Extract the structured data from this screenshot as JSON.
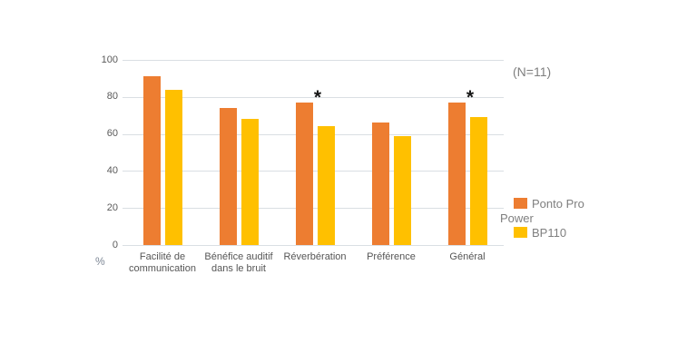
{
  "figure": {
    "background": "#ffffff",
    "annotation": "(N=11)",
    "unit_label": "%"
  },
  "legend": {
    "position": "right",
    "items": [
      {
        "label": "Ponto Pro Power",
        "color": "#ED7D31"
      },
      {
        "label": "BP110",
        "color": "#FFC000"
      }
    ]
  },
  "chart_data": {
    "type": "bar",
    "title": "",
    "categories": [
      "Facilité de communication",
      "Bénéfice auditif dans le bruit",
      "Réverbération",
      "Préférence",
      "Général"
    ],
    "series": [
      {
        "name": "Ponto Pro Power",
        "color": "#ED7D31",
        "values": [
          91,
          74,
          77,
          66,
          77
        ]
      },
      {
        "name": "BP110",
        "color": "#FFC000",
        "values": [
          84,
          68,
          64,
          59,
          69
        ]
      }
    ],
    "significance": {
      "symbol": "*",
      "marked_categories": [
        "Réverbération",
        "Général"
      ],
      "marked_indices": [
        2,
        4
      ]
    },
    "ylabel": "%",
    "ylim": [
      0,
      100
    ],
    "yticks": [
      0,
      20,
      40,
      60,
      80,
      100
    ],
    "grid": true,
    "gridline_color": "#dadfe3",
    "legend_position": "right",
    "annotation": "(N=11)"
  }
}
